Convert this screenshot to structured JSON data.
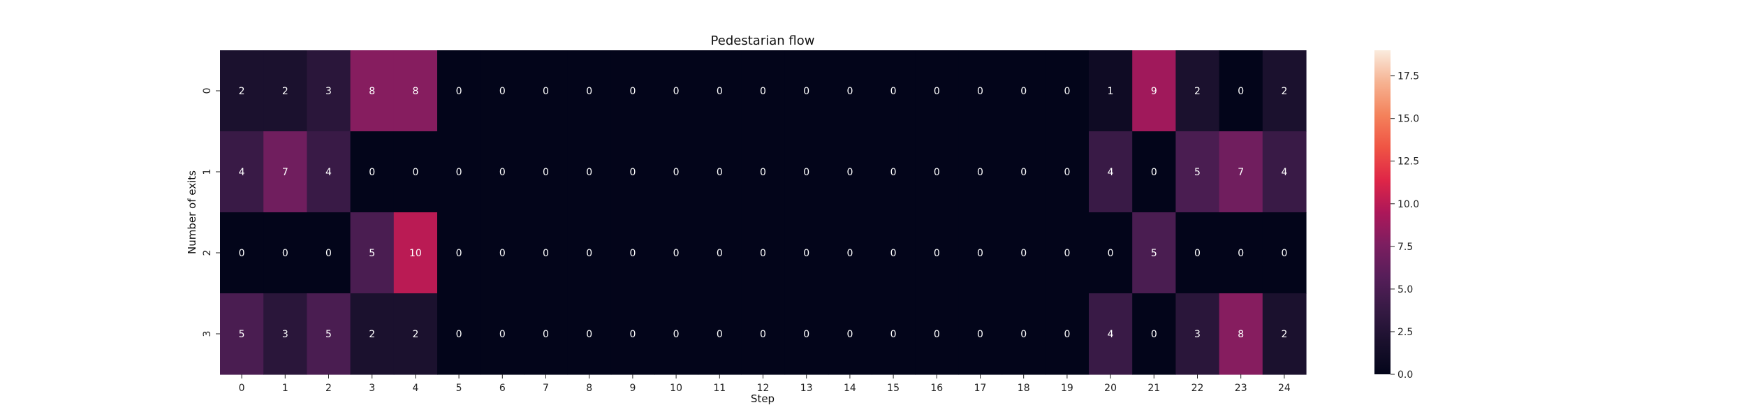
{
  "chart_data": {
    "type": "heatmap",
    "title": "Pedestarian flow",
    "xlabel": "Step",
    "ylabel": "Number of exits",
    "x_categories": [
      "0",
      "1",
      "2",
      "3",
      "4",
      "5",
      "6",
      "7",
      "8",
      "9",
      "10",
      "11",
      "12",
      "13",
      "14",
      "15",
      "16",
      "17",
      "18",
      "19",
      "20",
      "21",
      "22",
      "23",
      "24"
    ],
    "y_categories": [
      "0",
      "1",
      "2",
      "3"
    ],
    "values": [
      [
        2,
        2,
        3,
        8,
        8,
        0,
        0,
        0,
        0,
        0,
        0,
        0,
        0,
        0,
        0,
        0,
        0,
        0,
        0,
        0,
        1,
        9,
        2,
        0,
        2
      ],
      [
        4,
        7,
        4,
        0,
        0,
        0,
        0,
        0,
        0,
        0,
        0,
        0,
        0,
        0,
        0,
        0,
        0,
        0,
        0,
        0,
        4,
        0,
        5,
        7,
        4
      ],
      [
        0,
        0,
        0,
        5,
        10,
        0,
        0,
        0,
        0,
        0,
        0,
        0,
        0,
        0,
        0,
        0,
        0,
        0,
        0,
        0,
        0,
        5,
        0,
        0,
        0
      ],
      [
        5,
        3,
        5,
        2,
        2,
        0,
        0,
        0,
        0,
        0,
        0,
        0,
        0,
        0,
        0,
        0,
        0,
        0,
        0,
        0,
        4,
        0,
        3,
        8,
        2
      ]
    ],
    "colorbar": {
      "min": 0,
      "max": 19,
      "ticks": [
        "0.0",
        "2.5",
        "5.0",
        "7.5",
        "10.0",
        "12.5",
        "15.0",
        "17.5"
      ],
      "colormap": "rocket"
    },
    "grid": false,
    "legend": "none"
  }
}
